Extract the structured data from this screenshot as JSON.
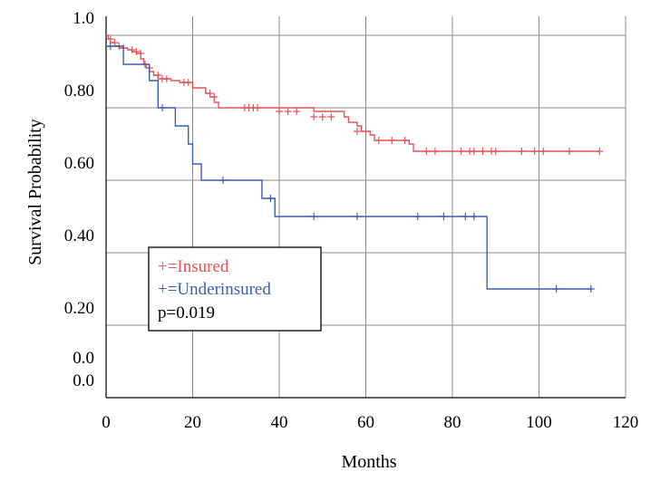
{
  "chart_data": {
    "type": "line",
    "xlabel": "Months",
    "ylabel": "Survival Probability",
    "xlim": [
      0,
      120
    ],
    "ylim": [
      0,
      1
    ],
    "grid": true,
    "x_ticks": [
      {
        "value": 0,
        "label": "0"
      },
      {
        "value": 20,
        "label": "20"
      },
      {
        "value": 40,
        "label": "40"
      },
      {
        "value": 60,
        "label": "60"
      },
      {
        "value": 80,
        "label": "80"
      },
      {
        "value": 100,
        "label": "100"
      },
      {
        "value": 120,
        "label": "120"
      }
    ],
    "y_ticks": [
      {
        "value": 1.0,
        "label": "1.0"
      },
      {
        "value": 0.8,
        "label": "0.80"
      },
      {
        "value": 0.6,
        "label": "0.60"
      },
      {
        "value": 0.4,
        "label": "0.40"
      },
      {
        "value": 0.2,
        "label": "0.20"
      },
      {
        "value": 0.0,
        "label": "0.0"
      }
    ],
    "extra_y_labels": [
      {
        "value": 0.1,
        "label": "0.0"
      }
    ],
    "legend": {
      "placement": "lower-left",
      "entries": [
        {
          "symbol": "+",
          "text": "=Insured",
          "color": "#e05555"
        },
        {
          "symbol": "+",
          "text": "=Underinsured",
          "color": "#3a5fb0"
        }
      ],
      "note": "p=0.019"
    },
    "series": [
      {
        "name": "Insured",
        "color": "#e05555",
        "steps": [
          [
            0,
            1.0
          ],
          [
            0.5,
            0.99
          ],
          [
            1,
            0.98
          ],
          [
            2,
            0.97
          ],
          [
            3,
            0.965
          ],
          [
            5,
            0.96
          ],
          [
            6,
            0.955
          ],
          [
            7,
            0.95
          ],
          [
            8,
            0.935
          ],
          [
            8.7,
            0.92
          ],
          [
            9.3,
            0.91
          ],
          [
            10,
            0.9
          ],
          [
            11,
            0.89
          ],
          [
            12,
            0.88
          ],
          [
            15,
            0.875
          ],
          [
            17,
            0.87
          ],
          [
            20,
            0.855
          ],
          [
            23,
            0.84
          ],
          [
            24,
            0.83
          ],
          [
            25,
            0.815
          ],
          [
            26,
            0.8
          ],
          [
            48,
            0.79
          ],
          [
            55,
            0.775
          ],
          [
            56,
            0.76
          ],
          [
            58,
            0.75
          ],
          [
            59,
            0.735
          ],
          [
            61,
            0.725
          ],
          [
            62,
            0.71
          ],
          [
            70,
            0.7
          ],
          [
            71,
            0.68
          ]
        ],
        "end": 114,
        "censored": [
          [
            1,
            0.99
          ],
          [
            2,
            0.98
          ],
          [
            3,
            0.97
          ],
          [
            4,
            0.965
          ],
          [
            6,
            0.96
          ],
          [
            7,
            0.955
          ],
          [
            8,
            0.95
          ],
          [
            9,
            0.92
          ],
          [
            10,
            0.91
          ],
          [
            12,
            0.89
          ],
          [
            13,
            0.88
          ],
          [
            14,
            0.88
          ],
          [
            18,
            0.87
          ],
          [
            19,
            0.87
          ],
          [
            24,
            0.84
          ],
          [
            25,
            0.83
          ],
          [
            32,
            0.8
          ],
          [
            33,
            0.8
          ],
          [
            34,
            0.8
          ],
          [
            35,
            0.8
          ],
          [
            40,
            0.79
          ],
          [
            42,
            0.79
          ],
          [
            44,
            0.79
          ],
          [
            48,
            0.775
          ],
          [
            50,
            0.775
          ],
          [
            52,
            0.775
          ],
          [
            58,
            0.735
          ],
          [
            60,
            0.735
          ],
          [
            63,
            0.71
          ],
          [
            66,
            0.71
          ],
          [
            69,
            0.71
          ],
          [
            74,
            0.68
          ],
          [
            76,
            0.68
          ],
          [
            82,
            0.68
          ],
          [
            84,
            0.68
          ],
          [
            85,
            0.68
          ],
          [
            87,
            0.68
          ],
          [
            89,
            0.68
          ],
          [
            90,
            0.68
          ],
          [
            96,
            0.68
          ],
          [
            99,
            0.68
          ],
          [
            101,
            0.68
          ],
          [
            107,
            0.68
          ],
          [
            114,
            0.68
          ]
        ]
      },
      {
        "name": "Underinsured",
        "color": "#3a5fb0",
        "steps": [
          [
            0,
            0.97
          ],
          [
            4,
            0.92
          ],
          [
            10,
            0.875
          ],
          [
            12,
            0.8
          ],
          [
            16,
            0.75
          ],
          [
            19,
            0.7
          ],
          [
            20,
            0.645
          ],
          [
            22,
            0.6
          ],
          [
            36,
            0.55
          ],
          [
            39,
            0.5
          ],
          [
            88,
            0.3
          ]
        ],
        "end": 112,
        "censored": [
          [
            1,
            0.97
          ],
          [
            13,
            0.8
          ],
          [
            27,
            0.6
          ],
          [
            38,
            0.55
          ],
          [
            48,
            0.5
          ],
          [
            58,
            0.5
          ],
          [
            72,
            0.5
          ],
          [
            78,
            0.5
          ],
          [
            83,
            0.5
          ],
          [
            85,
            0.5
          ],
          [
            104,
            0.3
          ],
          [
            112,
            0.3
          ]
        ]
      }
    ]
  }
}
